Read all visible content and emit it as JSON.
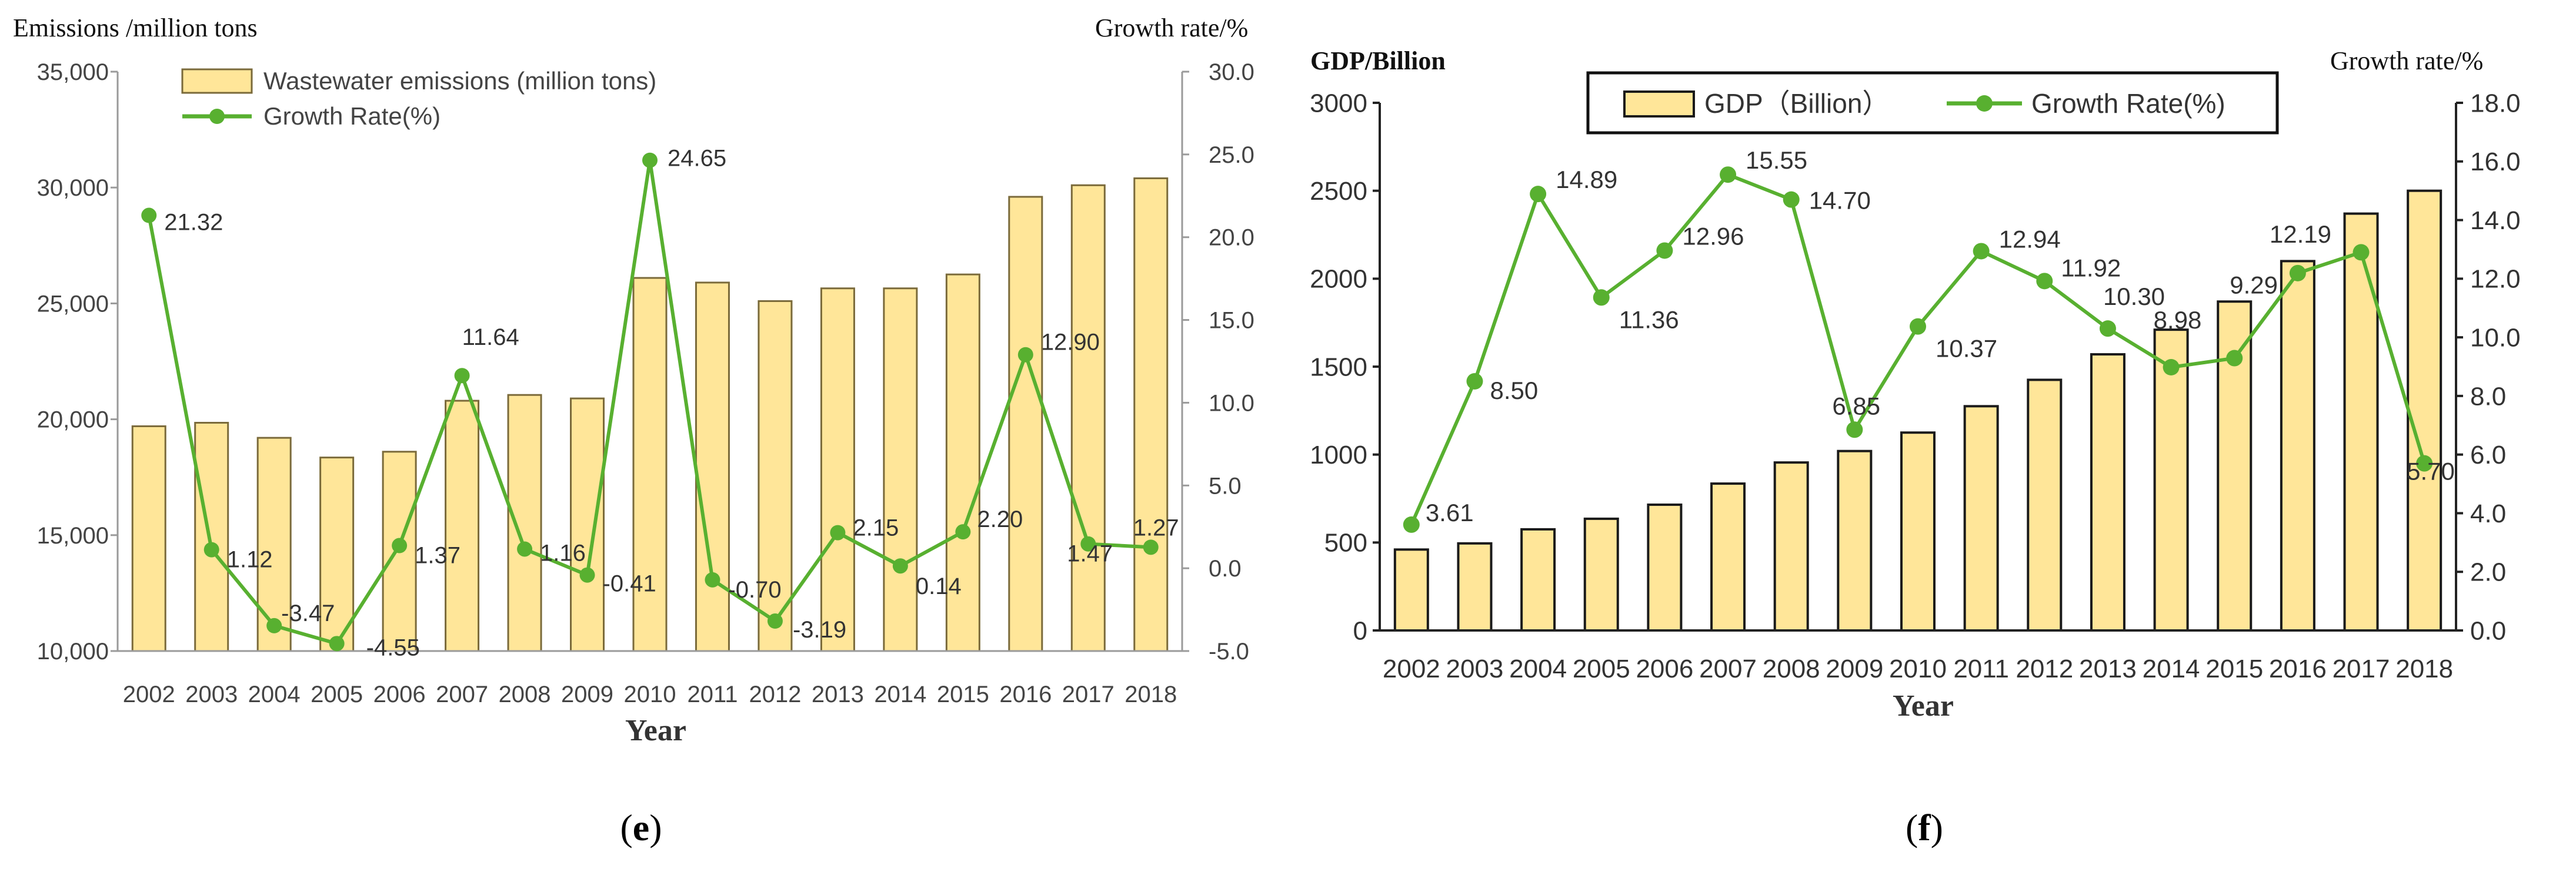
{
  "chart_data": [
    {
      "type": "bar",
      "panel": "(e)",
      "panel_letter": "e",
      "title": "",
      "xlabel": "Year",
      "ylabel": "Emissions /million tons",
      "ylabel_right": "Growth rate/%",
      "categories": [
        "2002",
        "2003",
        "2004",
        "2005",
        "2006",
        "2007",
        "2008",
        "2009",
        "2010",
        "2011",
        "2012",
        "2013",
        "2014",
        "2015",
        "2016",
        "2017",
        "2018"
      ],
      "ylim": [
        10000,
        35000
      ],
      "yticks": [
        10000,
        15000,
        20000,
        25000,
        30000,
        35000
      ],
      "ytick_labels": [
        "10,000",
        "15,000",
        "20,000",
        "25,000",
        "30,000",
        "35,000"
      ],
      "ylim_right": [
        -5,
        30
      ],
      "yticks_right": [
        -5,
        0,
        5,
        10,
        15,
        20,
        25,
        30
      ],
      "ytick_right_labels": [
        "-5.0",
        "0.0",
        "5.0",
        "10.0",
        "15.0",
        "20.0",
        "25.0",
        "30.0"
      ],
      "legend_position": "top-left",
      "series": [
        {
          "name": "Wastewater emissions (million tons)",
          "kind": "bar",
          "axis": "left",
          "color": "#FFE699",
          "values": [
            19700,
            19850,
            19200,
            18350,
            18600,
            20800,
            21050,
            20900,
            26100,
            25900,
            25100,
            25650,
            25650,
            26250,
            29600,
            30100,
            30400
          ]
        },
        {
          "name": "Growth Rate(%)",
          "kind": "line",
          "axis": "right",
          "color": "#58B030",
          "values": [
            21.32,
            1.12,
            -3.47,
            -4.55,
            1.37,
            11.64,
            1.16,
            -0.41,
            24.65,
            -0.7,
            -3.19,
            2.15,
            0.14,
            2.2,
            12.9,
            1.47,
            1.27
          ],
          "labels": [
            "21.32",
            "1.12",
            "-3.47",
            "-4.55",
            "1.37",
            "11.64",
            "1.16",
            "-0.41",
            "24.65",
            "-0.70",
            "-3.19",
            "2.15",
            "0.14",
            "2.20",
            "12.90",
            "1.47",
            "1.27"
          ]
        }
      ]
    },
    {
      "type": "bar",
      "panel": "(f)",
      "panel_letter": "f",
      "title": "",
      "xlabel": "Year",
      "ylabel": "GDP/Billion",
      "ylabel_right": "Growth rate/%",
      "categories": [
        "2002",
        "2003",
        "2004",
        "2005",
        "2006",
        "2007",
        "2008",
        "2009",
        "2010",
        "2011",
        "2012",
        "2013",
        "2014",
        "2015",
        "2016",
        "2017",
        "2018"
      ],
      "ylim": [
        0,
        3000
      ],
      "yticks": [
        0,
        500,
        1000,
        1500,
        2000,
        2500,
        3000
      ],
      "ytick_labels": [
        "0",
        "500",
        "1000",
        "1500",
        "2000",
        "2500",
        "3000"
      ],
      "ylim_right": [
        0,
        18
      ],
      "yticks_right": [
        0,
        2,
        4,
        6,
        8,
        10,
        12,
        14,
        16,
        18
      ],
      "ytick_right_labels": [
        "0.0",
        "2.0",
        "4.0",
        "6.0",
        "8.0",
        "10.0",
        "12.0",
        "14.0",
        "16.0",
        "18.0"
      ],
      "legend_position": "top-center",
      "series": [
        {
          "name": "GDP（Billion）",
          "kind": "bar",
          "axis": "left",
          "color": "#FFE699",
          "values": [
            460,
            495,
            575,
            635,
            715,
            835,
            955,
            1020,
            1125,
            1275,
            1425,
            1570,
            1710,
            1870,
            2100,
            2370,
            2500
          ]
        },
        {
          "name": "Growth Rate(%)",
          "kind": "line",
          "axis": "right",
          "color": "#58B030",
          "values": [
            3.61,
            8.5,
            14.89,
            11.36,
            12.96,
            15.55,
            14.7,
            6.85,
            10.37,
            12.94,
            11.92,
            10.3,
            8.98,
            9.29,
            12.19,
            12.9,
            5.7
          ],
          "labels": [
            "3.61",
            "8.50",
            "14.89",
            "11.36",
            "12.96",
            "15.55",
            "14.70",
            "6.85",
            "10.37",
            "12.94",
            "11.92",
            "10.30",
            "8.98",
            "9.29",
            "12.19",
            "",
            "5.70"
          ]
        }
      ]
    }
  ]
}
